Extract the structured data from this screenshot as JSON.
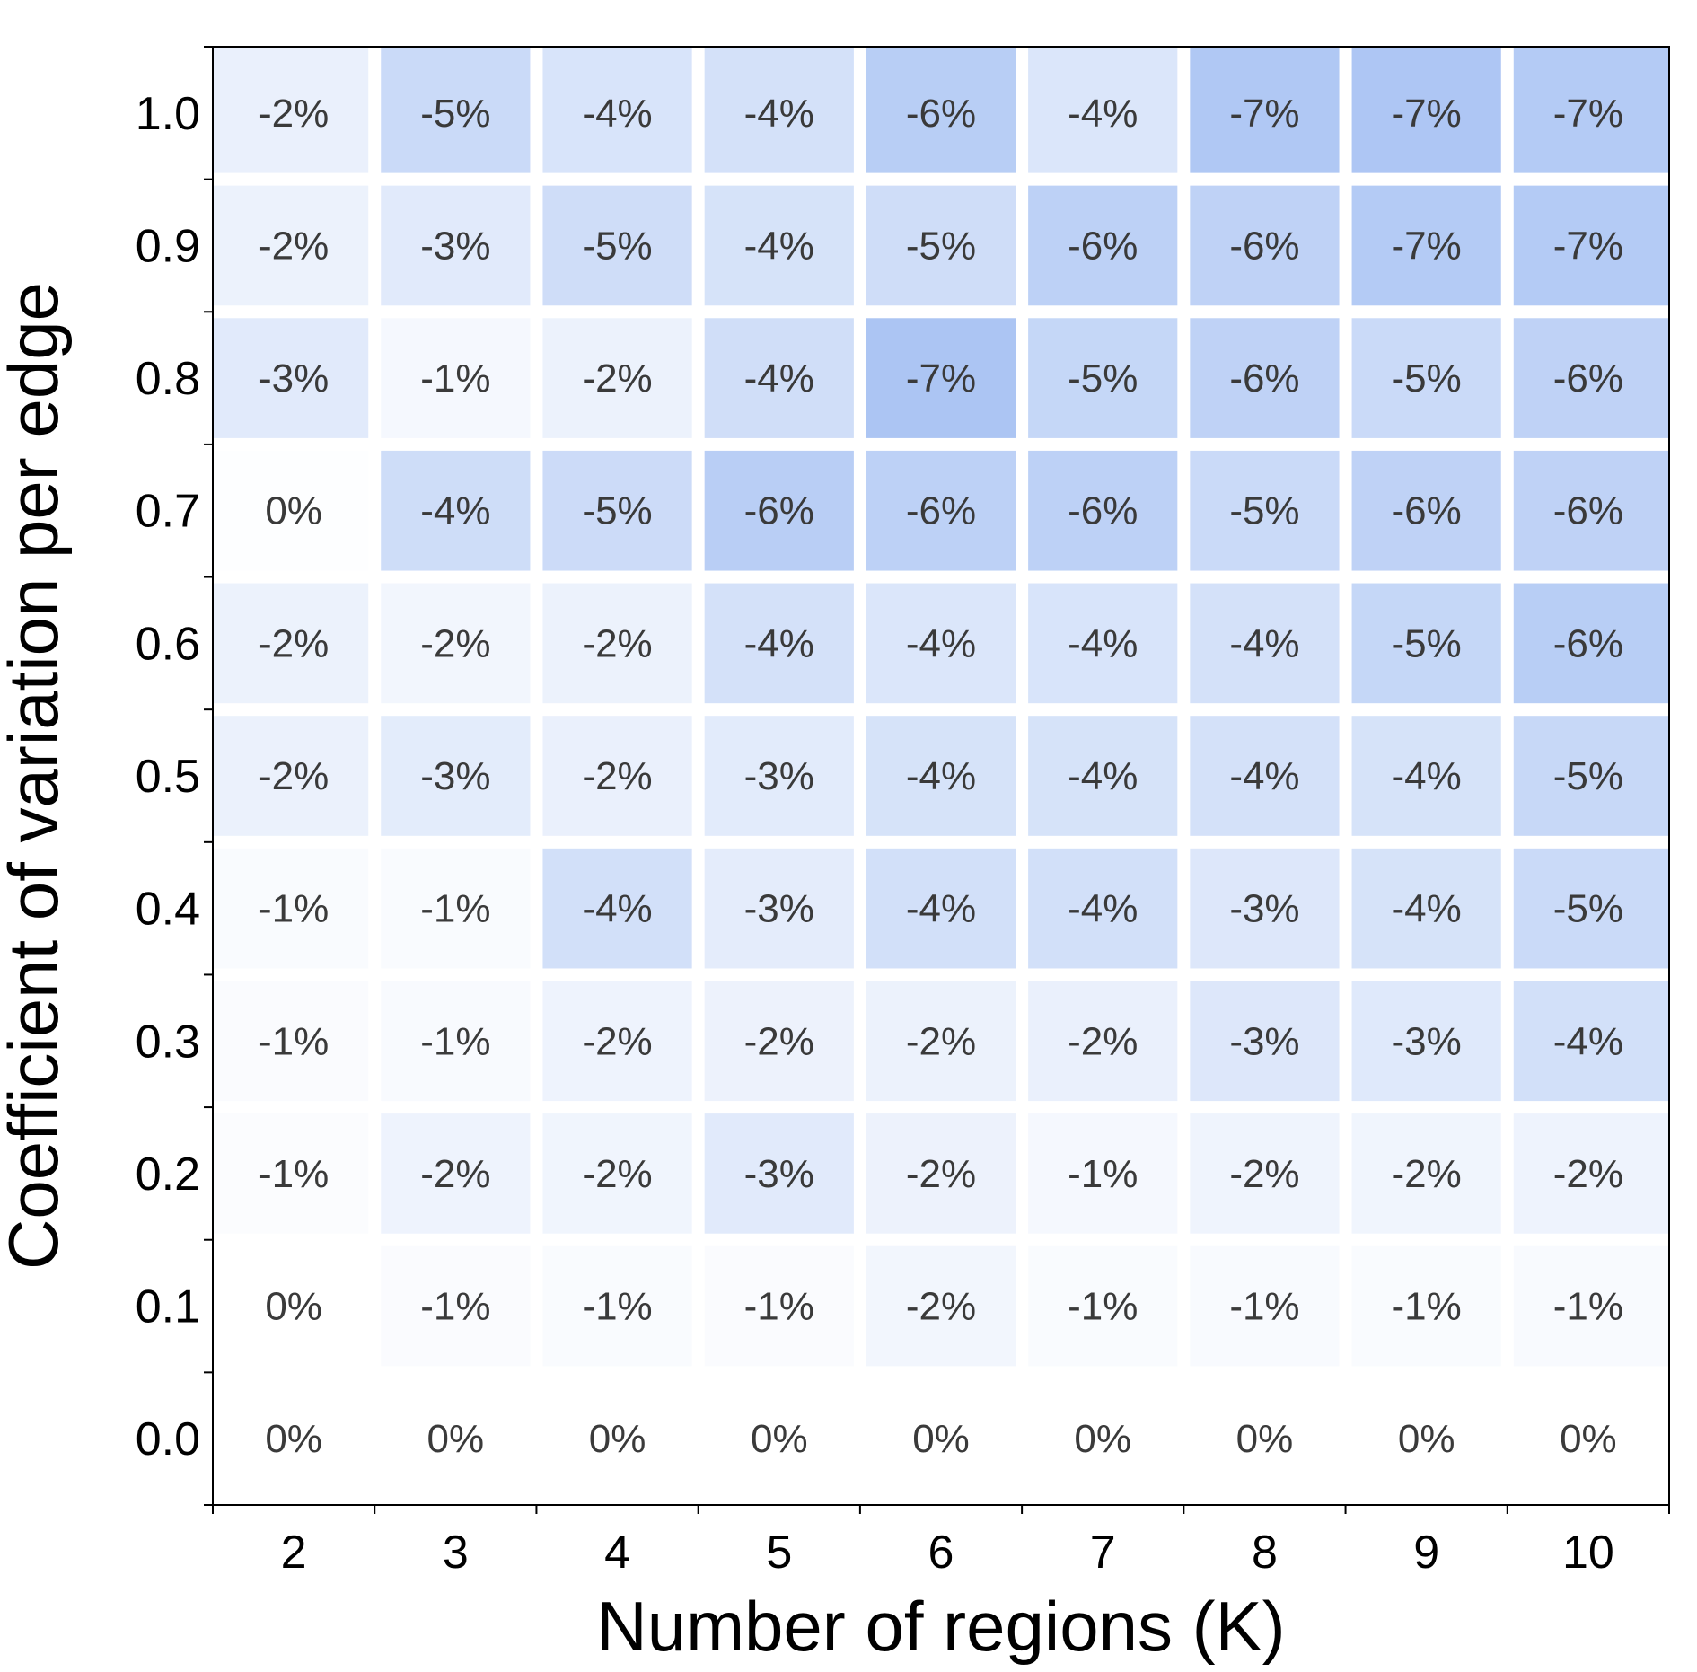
{
  "chart_data": {
    "type": "heatmap",
    "xlabel": "Number of regions (K)",
    "ylabel": "Coefficient of variation per edge",
    "x": [
      2,
      3,
      4,
      5,
      6,
      7,
      8,
      9,
      10
    ],
    "x_tick_labels": [
      "2",
      "3",
      "4",
      "5",
      "6",
      "7",
      "8",
      "9",
      "10"
    ],
    "y": [
      0.0,
      0.1,
      0.2,
      0.3,
      0.4,
      0.5,
      0.6,
      0.7,
      0.8,
      0.9,
      1.0
    ],
    "y_tick_labels": [
      "0.0",
      "0.1",
      "0.2",
      "0.3",
      "0.4",
      "0.5",
      "0.6",
      "0.7",
      "0.8",
      "0.9",
      "1.0"
    ],
    "values": [
      [
        0,
        0,
        0,
        0,
        0,
        0,
        0,
        0,
        0
      ],
      [
        0,
        -1,
        -1,
        -1,
        -2,
        -1,
        -1,
        -1,
        -1
      ],
      [
        -1,
        -2,
        -2,
        -3,
        -2,
        -1,
        -2,
        -2,
        -2
      ],
      [
        -1,
        -1,
        -2,
        -2,
        -2,
        -2,
        -3,
        -3,
        -4
      ],
      [
        -1,
        -1,
        -4,
        -3,
        -4,
        -4,
        -3,
        -4,
        -5
      ],
      [
        -2,
        -3,
        -2,
        -3,
        -4,
        -4,
        -4,
        -4,
        -5
      ],
      [
        -2,
        -2,
        -2,
        -4,
        -4,
        -4,
        -4,
        -5,
        -6
      ],
      [
        0,
        -4,
        -5,
        -6,
        -6,
        -6,
        -5,
        -6,
        -6
      ],
      [
        -3,
        -1,
        -2,
        -4,
        -7,
        -5,
        -6,
        -5,
        -6
      ],
      [
        -2,
        -3,
        -5,
        -4,
        -5,
        -6,
        -6,
        -7,
        -7
      ],
      [
        -2,
        -5,
        -4,
        -4,
        -6,
        -4,
        -7,
        -7,
        -7
      ]
    ],
    "intensity": [
      [
        0.0,
        0.0,
        0.0,
        0.0,
        0.0,
        0.0,
        0.0,
        0.0,
        0.0
      ],
      [
        0.0,
        0.05,
        0.06,
        0.05,
        0.12,
        0.06,
        0.07,
        0.06,
        0.07
      ],
      [
        0.04,
        0.16,
        0.14,
        0.28,
        0.17,
        0.09,
        0.15,
        0.14,
        0.16
      ],
      [
        0.05,
        0.07,
        0.16,
        0.17,
        0.18,
        0.2,
        0.32,
        0.3,
        0.42
      ],
      [
        0.06,
        0.06,
        0.42,
        0.25,
        0.42,
        0.42,
        0.32,
        0.38,
        0.5
      ],
      [
        0.19,
        0.26,
        0.2,
        0.27,
        0.38,
        0.38,
        0.4,
        0.38,
        0.52
      ],
      [
        0.18,
        0.12,
        0.18,
        0.4,
        0.34,
        0.36,
        0.4,
        0.54,
        0.66
      ],
      [
        0.02,
        0.46,
        0.48,
        0.65,
        0.62,
        0.62,
        0.5,
        0.6,
        0.6
      ],
      [
        0.28,
        0.09,
        0.18,
        0.44,
        0.78,
        0.54,
        0.6,
        0.5,
        0.6
      ],
      [
        0.18,
        0.28,
        0.45,
        0.38,
        0.45,
        0.62,
        0.6,
        0.7,
        0.7
      ],
      [
        0.2,
        0.5,
        0.36,
        0.4,
        0.66,
        0.34,
        0.74,
        0.76,
        0.7
      ]
    ],
    "colors": {
      "low": "#ffffff",
      "high": "#94b4f0",
      "label": "#3a3a3a",
      "axis": "#000000"
    },
    "grid": false,
    "legend": "none",
    "label_suffix": "%"
  }
}
